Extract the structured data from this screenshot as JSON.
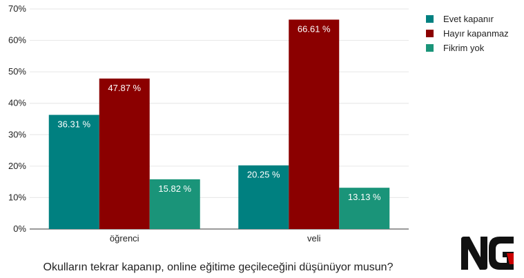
{
  "chart_data": {
    "type": "bar",
    "categories": [
      "öğrenci",
      "veli"
    ],
    "series": [
      {
        "name": "Evet kapanır",
        "values": [
          36.31,
          20.25
        ],
        "labels": [
          "36.31 %",
          "20.25 %"
        ],
        "color": "#008080"
      },
      {
        "name": "Hayır kapanmaz",
        "values": [
          47.87,
          66.61
        ],
        "labels": [
          "47.87 %",
          "66.61 %"
        ],
        "color": "#8b0000"
      },
      {
        "name": "Fikrim yok",
        "values": [
          15.82,
          13.13
        ],
        "labels": [
          "15.82 %",
          "13.13 %"
        ],
        "color": "#1a9479"
      }
    ],
    "xlabel": "Okulların tekrar kapanıp, online eğitime geçileceğini düşünüyor musun?",
    "ylabel": "",
    "ylim": [
      0,
      70
    ],
    "yticks": [
      0,
      10,
      20,
      30,
      40,
      50,
      60,
      70
    ],
    "ytick_labels": [
      "0%",
      "10%",
      "20%",
      "30%",
      "40%",
      "50%",
      "60%",
      "70%"
    ],
    "grid": true,
    "legend_position": "top-right"
  },
  "logo": {
    "text": "NG",
    "icon": "ng-logo-icon",
    "colors": {
      "letters": "#111111",
      "accent": "#cc0000"
    }
  }
}
